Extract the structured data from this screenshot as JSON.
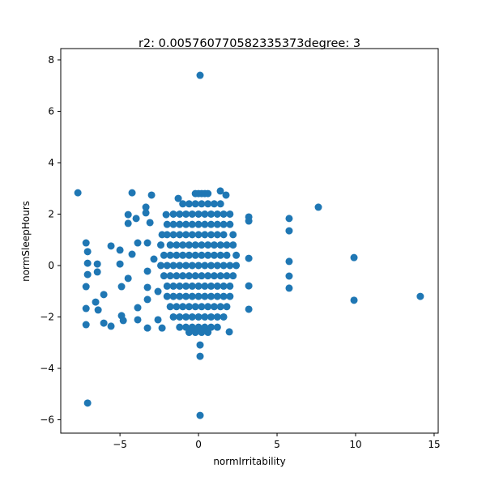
{
  "chart_data": {
    "type": "scatter",
    "title": "r2: 0.005760770582335373degree: 3",
    "x_label": "normIrritability",
    "y_label": "normSleepHours",
    "xlim": [
      -8.77,
      15.26
    ],
    "ylim": [
      -6.52,
      8.44
    ],
    "xticks": [
      {
        "value": -5,
        "label": "−5"
      },
      0,
      5,
      10,
      15
    ],
    "yticks": [
      {
        "value": -6,
        "label": "−6"
      },
      {
        "value": -4,
        "label": "−4"
      },
      {
        "value": -2,
        "label": "−2"
      },
      0,
      2,
      4,
      6,
      8
    ],
    "grid": false,
    "series": [
      {
        "color": "#1f77b4",
        "x": [
          -0.2,
          0,
          0.2,
          0.4,
          0.6,
          -1.0,
          -0.6,
          -0.2,
          0.2,
          0.6,
          1.0,
          1.4,
          -1.6,
          -1.2,
          -0.8,
          -0.4,
          0,
          0.4,
          0.8,
          1.2,
          1.6,
          2.0,
          -2.0,
          -1.6,
          -1.2,
          -0.8,
          -0.4,
          0,
          0.4,
          0.8,
          1.2,
          1.6,
          2.0,
          -2.0,
          -1.6,
          -1.2,
          -0.8,
          -0.4,
          0,
          0.4,
          0.8,
          1.2,
          1.6,
          2.2,
          -2.4,
          -1.8,
          -1.4,
          -1.0,
          -0.6,
          -0.2,
          0.2,
          0.6,
          1.0,
          1.4,
          1.8,
          2.2,
          -2.2,
          -1.8,
          -1.4,
          -1.0,
          -0.6,
          -0.2,
          0.2,
          0.6,
          1.0,
          1.4,
          1.8,
          2.4,
          -2.4,
          -2.0,
          -1.6,
          -1.2,
          -0.8,
          -0.4,
          0,
          0.4,
          0.8,
          1.2,
          1.6,
          2.0,
          2.4,
          -2.2,
          -1.8,
          -1.4,
          -1.0,
          -0.6,
          -0.2,
          0.2,
          0.6,
          1.0,
          1.4,
          1.8,
          2.2,
          -2.0,
          -1.6,
          -1.2,
          -0.8,
          -0.4,
          0,
          0.4,
          0.8,
          1.2,
          1.6,
          2.0,
          -2.0,
          -1.6,
          -1.2,
          -0.8,
          -0.4,
          0,
          0.4,
          0.8,
          1.2,
          1.6,
          2.0,
          -1.8,
          -1.4,
          -1.0,
          -0.6,
          -0.2,
          0.2,
          0.6,
          1.0,
          1.4,
          1.8,
          -1.6,
          -1.2,
          -0.8,
          -0.4,
          0,
          0.4,
          0.8,
          1.2,
          1.6,
          -1.2,
          -0.8,
          -0.4,
          0,
          0.4,
          0.8,
          1.2,
          -0.6,
          -0.2,
          0.2,
          0.6,
          -7.68,
          0.1,
          -7.06,
          0.1,
          0.1,
          0.1,
          7.63,
          5.77,
          5.77,
          5.77,
          5.77,
          5.77,
          9.9,
          9.9,
          14.12,
          3.2,
          3.2,
          3.2,
          3.2,
          3.2,
          -7.16,
          -7.06,
          -7.06,
          -7.06,
          -7.16,
          -7.16,
          -7.16,
          -6.44,
          -6.44,
          -6.39,
          -6.55,
          -6.03,
          -6.03,
          -5.57,
          -5.57,
          -5.0,
          -5.0,
          -4.9,
          -4.9,
          -4.79,
          -4.48,
          -4.48,
          -4.23,
          -4.48,
          -4.23,
          -3.97,
          -3.87,
          -3.87,
          -3.87,
          -3.35,
          -3.35,
          -3.25,
          -3.25,
          -3.25,
          -3.25,
          -3.25,
          -2.99,
          -3.09,
          -2.84,
          -2.58,
          -2.58,
          -2.32,
          -2.32,
          -2.06,
          -1.29,
          1.75,
          1.39,
          1.96
        ],
        "values": [
          2.8,
          2.8,
          2.8,
          2.8,
          2.8,
          2.4,
          2.4,
          2.4,
          2.4,
          2.4,
          2.4,
          2.4,
          2.0,
          2.0,
          2.0,
          2.0,
          2.0,
          2.0,
          2.0,
          2.0,
          2.0,
          2.0,
          1.6,
          1.6,
          1.6,
          1.6,
          1.6,
          1.6,
          1.6,
          1.6,
          1.6,
          1.6,
          1.6,
          1.2,
          1.2,
          1.2,
          1.2,
          1.2,
          1.2,
          1.2,
          1.2,
          1.2,
          1.2,
          1.2,
          0.8,
          0.8,
          0.8,
          0.8,
          0.8,
          0.8,
          0.8,
          0.8,
          0.8,
          0.8,
          0.8,
          0.8,
          0.4,
          0.4,
          0.4,
          0.4,
          0.4,
          0.4,
          0.4,
          0.4,
          0.4,
          0.4,
          0.4,
          0.4,
          0,
          0,
          0,
          0,
          0,
          0,
          0,
          0,
          0,
          0,
          0,
          0,
          0,
          -0.4,
          -0.4,
          -0.4,
          -0.4,
          -0.4,
          -0.4,
          -0.4,
          -0.4,
          -0.4,
          -0.4,
          -0.4,
          -0.4,
          -0.8,
          -0.8,
          -0.8,
          -0.8,
          -0.8,
          -0.8,
          -0.8,
          -0.8,
          -0.8,
          -0.8,
          -0.8,
          -1.2,
          -1.2,
          -1.2,
          -1.2,
          -1.2,
          -1.2,
          -1.2,
          -1.2,
          -1.2,
          -1.2,
          -1.2,
          -1.6,
          -1.6,
          -1.6,
          -1.6,
          -1.6,
          -1.6,
          -1.6,
          -1.6,
          -1.6,
          -1.6,
          -2.0,
          -2.0,
          -2.0,
          -2.0,
          -2.0,
          -2.0,
          -2.0,
          -2.0,
          -2.0,
          -2.4,
          -2.4,
          -2.4,
          -2.4,
          -2.4,
          -2.4,
          -2.4,
          -2.6,
          -2.6,
          -2.6,
          -2.6,
          2.83,
          7.4,
          -5.35,
          -5.83,
          -3.53,
          -3.09,
          2.27,
          1.83,
          1.35,
          0.16,
          -0.41,
          -0.88,
          0.31,
          -1.35,
          -1.2,
          1.89,
          0.28,
          -0.79,
          -1.7,
          1.73,
          0.88,
          0.54,
          0.09,
          -0.35,
          -0.82,
          -1.67,
          -2.3,
          0.06,
          -0.25,
          -1.73,
          -1.42,
          -1.13,
          -2.24,
          -2.36,
          0.76,
          0.6,
          0.06,
          -0.82,
          -1.95,
          -2.14,
          1.98,
          1.64,
          2.83,
          -0.5,
          0.44,
          1.83,
          0.88,
          -1.64,
          -2.11,
          2.27,
          2.05,
          0.88,
          -0.22,
          -0.85,
          -1.32,
          -2.43,
          2.74,
          1.67,
          0.25,
          -1.01,
          -2.11,
          1.2,
          -2.43,
          1.98,
          2.61,
          2.74,
          2.9,
          -2.58
        ]
      }
    ]
  }
}
